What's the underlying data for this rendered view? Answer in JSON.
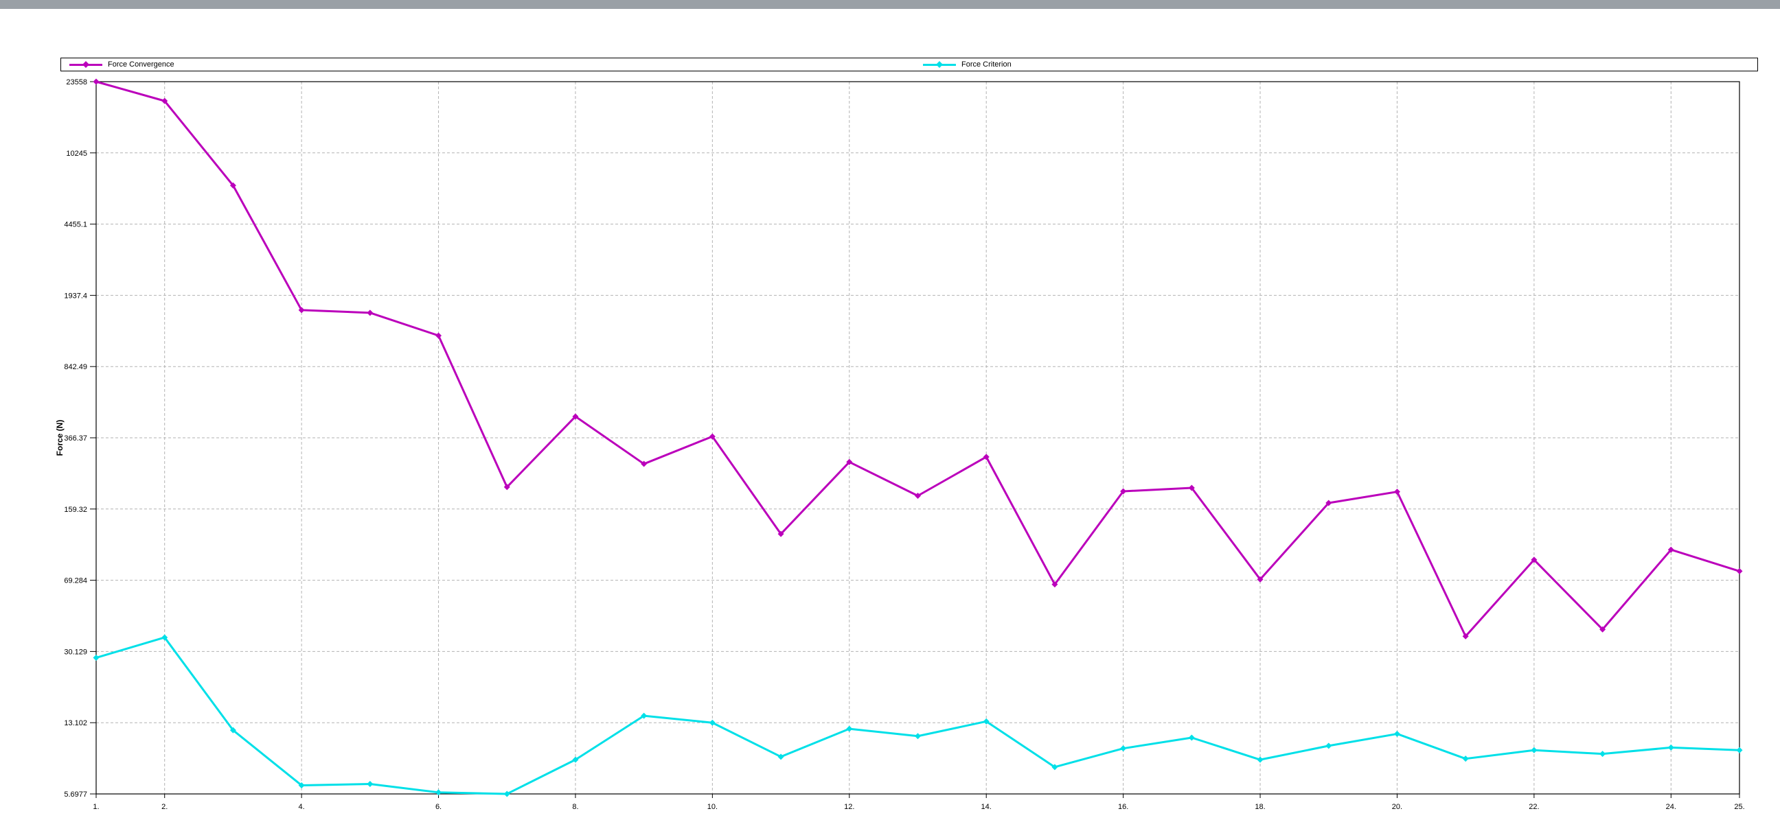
{
  "window": {
    "top_bar_color": "#9aa0a6"
  },
  "colors": {
    "background": "#ffffff",
    "plot_border": "#000000",
    "gridline": "#b3b3b3",
    "force_convergence": "#bb00bb",
    "force_criterion": "#00e0e8"
  },
  "chart_data": {
    "type": "line",
    "title": "",
    "xlabel": "",
    "ylabel": "Force (N)",
    "y_scale": "log",
    "ylim": [
      5.6977,
      23558
    ],
    "x_range": [
      1,
      25
    ],
    "grid": "dashed",
    "legend_position": "top",
    "y_tick_labels": [
      "23558",
      "10245",
      "4455.1",
      "1937.4",
      "842.49",
      "366.37",
      "159.32",
      "69.284",
      "30.129",
      "13.102",
      "5.6977"
    ],
    "y_ticks": [
      23558,
      10245,
      4455.1,
      1937.4,
      842.49,
      366.37,
      159.32,
      69.284,
      30.129,
      13.102,
      5.6977
    ],
    "x_ticks_labeled": [
      1,
      2,
      4,
      6,
      8,
      10,
      12,
      14,
      16,
      18,
      20,
      22,
      24,
      25
    ],
    "x_tick_label_strings": [
      "1.",
      "2.",
      "4.",
      "6.",
      "8.",
      "10.",
      "12.",
      "14.",
      "16.",
      "18.",
      "20.",
      "22.",
      "24.",
      "25."
    ],
    "x": [
      1,
      2,
      3,
      4,
      5,
      6,
      7,
      8,
      9,
      10,
      11,
      12,
      13,
      14,
      15,
      16,
      17,
      18,
      19,
      20,
      21,
      22,
      23,
      24,
      25
    ],
    "series": [
      {
        "name": "Force Convergence",
        "color": "#bb00bb",
        "marker": "diamond",
        "values": [
          23558,
          18800,
          7000,
          1630,
          1580,
          1210,
          206,
          470,
          270,
          372,
          119,
          276,
          186,
          293,
          66,
          196,
          204,
          70,
          171,
          195,
          36,
          88,
          39,
          99,
          77
        ]
      },
      {
        "name": "Force Criterion",
        "color": "#00e0e8",
        "marker": "diamond",
        "values": [
          28,
          35.5,
          12,
          6.3,
          6.4,
          5.8,
          5.7,
          8.5,
          14.2,
          13.1,
          8.8,
          12.2,
          11.2,
          13.3,
          7.8,
          9.7,
          11,
          8.5,
          10,
          11.5,
          8.6,
          9.5,
          9.1,
          9.8,
          9.5
        ]
      }
    ]
  }
}
